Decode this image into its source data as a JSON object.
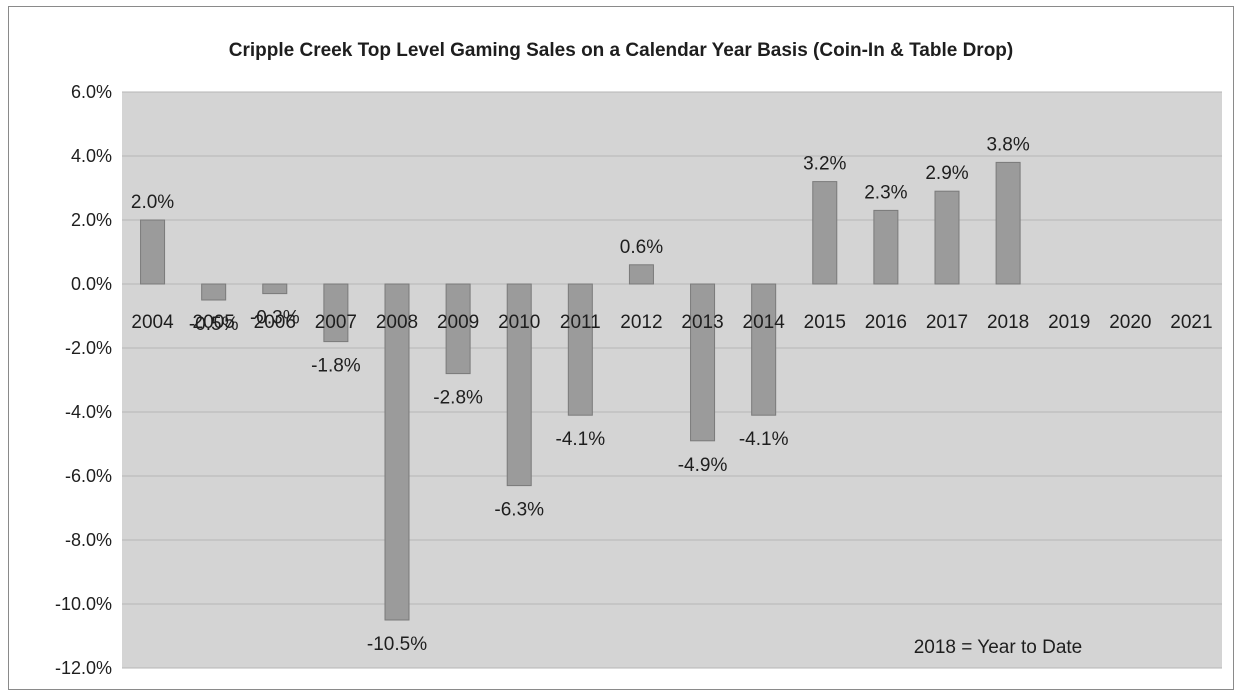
{
  "chart_data": {
    "type": "bar",
    "title": "Cripple Creek Top Level Gaming Sales on a Calendar Year Basis (Coin-In & Table Drop)",
    "xlabel": "",
    "ylabel": "",
    "categories": [
      "2004",
      "2005",
      "2006",
      "2007",
      "2008",
      "2009",
      "2010",
      "2011",
      "2012",
      "2013",
      "2014",
      "2015",
      "2016",
      "2017",
      "2018",
      "2019",
      "2020",
      "2021"
    ],
    "values": [
      2.0,
      -0.5,
      -0.3,
      -1.8,
      -10.5,
      -2.8,
      -6.3,
      -4.1,
      0.6,
      -4.9,
      -4.1,
      3.2,
      2.3,
      2.9,
      3.8,
      null,
      null,
      null
    ],
    "data_labels": [
      "2.0%",
      "-0.5%",
      "-0.3%",
      "-1.8%",
      "-10.5%",
      "-2.8%",
      "-6.3%",
      "-4.1%",
      "0.6%",
      "-4.9%",
      "-4.1%",
      "3.2%",
      "2.3%",
      "2.9%",
      "3.8%",
      "",
      "",
      ""
    ],
    "yticks": [
      6,
      4,
      2,
      0,
      -2,
      -4,
      -6,
      -8,
      -10,
      -12
    ],
    "ytick_labels": [
      "6.0%",
      "4.0%",
      "2.0%",
      "0.0%",
      "-2.0%",
      "-4.0%",
      "-6.0%",
      "-8.0%",
      "-10.0%",
      "-12.0%"
    ],
    "ylim": [
      -12,
      6
    ],
    "grid": true,
    "legend": "none",
    "annotation": "2018 = Year to Date",
    "colors": {
      "plot_background": "#d4d4d4",
      "bar_fill": "#9b9b9b",
      "bar_stroke": "#7a7a7a",
      "gridline": "#b6b6b6",
      "text": "#1e1e1e"
    }
  }
}
